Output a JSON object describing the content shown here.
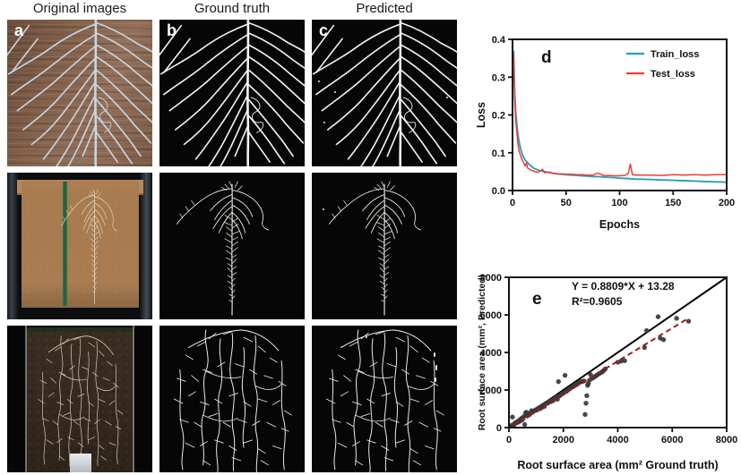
{
  "figure": {
    "column_headers": [
      "Original images",
      "Ground truth",
      "Predicted"
    ],
    "panel_labels": {
      "a": "a",
      "b": "b",
      "c": "c"
    }
  },
  "chart_data": [
    {
      "id": "training-loss-curve",
      "type": "line",
      "panel_label": "d",
      "xlabel": "Epochs",
      "ylabel": "Loss",
      "xlim": [
        0,
        200
      ],
      "ylim": [
        0,
        0.4
      ],
      "xticks": [
        [
          0,
          "0"
        ],
        [
          50,
          "50"
        ],
        [
          100,
          "100"
        ],
        [
          150,
          "150"
        ],
        [
          200,
          "200"
        ]
      ],
      "yticks": [
        [
          0,
          "0.0"
        ],
        [
          0.1,
          "0.1"
        ],
        [
          0.2,
          "0.2"
        ],
        [
          0.3,
          "0.3"
        ],
        [
          0.4,
          "0.4"
        ]
      ],
      "grid": false,
      "legend_position": "top-right",
      "series": [
        {
          "name": "Train_loss",
          "color": "#2a9fb5",
          "x": [
            1,
            2,
            3,
            4,
            5,
            6,
            8,
            10,
            12,
            13,
            14,
            16,
            18,
            20,
            24,
            28,
            30,
            34,
            38,
            42,
            46,
            50,
            55,
            60,
            65,
            70,
            75,
            80,
            85,
            90,
            95,
            100,
            105,
            108,
            110,
            112,
            115,
            120,
            130,
            140,
            150,
            160,
            170,
            180,
            190,
            200
          ],
          "y": [
            0.37,
            0.26,
            0.205,
            0.175,
            0.15,
            0.13,
            0.105,
            0.09,
            0.08,
            0.077,
            0.074,
            0.068,
            0.063,
            0.059,
            0.054,
            0.051,
            0.05,
            0.048,
            0.046,
            0.044,
            0.043,
            0.042,
            0.041,
            0.04,
            0.039,
            0.038,
            0.037,
            0.037,
            0.036,
            0.035,
            0.034,
            0.033,
            0.032,
            0.032,
            0.031,
            0.031,
            0.03,
            0.03,
            0.029,
            0.028,
            0.027,
            0.026,
            0.025,
            0.024,
            0.023,
            0.022
          ]
        },
        {
          "name": "Test_loss",
          "color": "#f23b35",
          "x": [
            1,
            2,
            3,
            4,
            5,
            6,
            8,
            10,
            12,
            13,
            14,
            16,
            18,
            20,
            24,
            28,
            30,
            34,
            38,
            42,
            46,
            50,
            55,
            60,
            65,
            70,
            75,
            80,
            85,
            90,
            95,
            100,
            105,
            108,
            110,
            112,
            115,
            120,
            130,
            140,
            150,
            160,
            170,
            180,
            190,
            200
          ],
          "y": [
            0.36,
            0.24,
            0.185,
            0.155,
            0.125,
            0.105,
            0.088,
            0.075,
            0.065,
            0.073,
            0.06,
            0.056,
            0.053,
            0.051,
            0.048,
            0.056,
            0.047,
            0.049,
            0.045,
            0.044,
            0.044,
            0.043,
            0.043,
            0.042,
            0.042,
            0.041,
            0.041,
            0.046,
            0.04,
            0.04,
            0.039,
            0.039,
            0.04,
            0.045,
            0.07,
            0.042,
            0.041,
            0.041,
            0.041,
            0.04,
            0.042,
            0.041,
            0.042,
            0.041,
            0.042,
            0.042
          ]
        }
      ]
    },
    {
      "id": "predicted-vs-groundtruth",
      "type": "scatter",
      "panel_label": "e",
      "xlabel": "Root surface area (mm² Ground truth)",
      "ylabel": "Root surface area (mm², Predicted)",
      "annotation": {
        "equation": "Y = 0.8809*X + 13.28",
        "r_squared": "R²=0.9605"
      },
      "xlim": [
        0,
        8000
      ],
      "ylim": [
        0,
        8000
      ],
      "xticks": [
        [
          0,
          "0"
        ],
        [
          2000,
          "2000"
        ],
        [
          4000,
          "4000"
        ],
        [
          6000,
          "6000"
        ],
        [
          8000,
          "8000"
        ]
      ],
      "yticks": [
        [
          0,
          "0"
        ],
        [
          2000,
          "2000"
        ],
        [
          4000,
          "4000"
        ],
        [
          6000,
          "6000"
        ],
        [
          8000,
          "8000"
        ]
      ],
      "grid": false,
      "identity_line": {
        "color": "#000000",
        "width": 2
      },
      "regression": {
        "slope": 0.8809,
        "intercept": 13.28,
        "x_start": 150,
        "x_end": 6600,
        "color": "#9e1b1b",
        "dashed": true
      },
      "point_color": "#383838",
      "points": [
        [
          60,
          90
        ],
        [
          110,
          130
        ],
        [
          130,
          560
        ],
        [
          170,
          90
        ],
        [
          200,
          210
        ],
        [
          240,
          260
        ],
        [
          280,
          250
        ],
        [
          320,
          330
        ],
        [
          360,
          300
        ],
        [
          400,
          420
        ],
        [
          430,
          370
        ],
        [
          470,
          500
        ],
        [
          500,
          430
        ],
        [
          540,
          580
        ],
        [
          580,
          160
        ],
        [
          610,
          770
        ],
        [
          640,
          820
        ],
        [
          670,
          620
        ],
        [
          700,
          660
        ],
        [
          730,
          740
        ],
        [
          760,
          700
        ],
        [
          800,
          780
        ],
        [
          830,
          900
        ],
        [
          860,
          810
        ],
        [
          900,
          860
        ],
        [
          940,
          900
        ],
        [
          980,
          950
        ],
        [
          1020,
          930
        ],
        [
          1060,
          1010
        ],
        [
          1100,
          1050
        ],
        [
          1140,
          1000
        ],
        [
          1180,
          1120
        ],
        [
          1220,
          1080
        ],
        [
          1260,
          1200
        ],
        [
          1300,
          1130
        ],
        [
          1340,
          1270
        ],
        [
          1380,
          1300
        ],
        [
          1420,
          1290
        ],
        [
          1460,
          1370
        ],
        [
          1500,
          1400
        ],
        [
          1540,
          1380
        ],
        [
          1580,
          1460
        ],
        [
          1620,
          1440
        ],
        [
          1660,
          1520
        ],
        [
          1700,
          1570
        ],
        [
          1740,
          1640
        ],
        [
          1780,
          1510
        ],
        [
          1820,
          2450
        ],
        [
          1860,
          1690
        ],
        [
          1900,
          1740
        ],
        [
          1950,
          1800
        ],
        [
          2000,
          1830
        ],
        [
          2060,
          2780
        ],
        [
          2100,
          1920
        ],
        [
          2160,
          1990
        ],
        [
          2220,
          2060
        ],
        [
          2280,
          2120
        ],
        [
          2340,
          2170
        ],
        [
          2400,
          2230
        ],
        [
          2460,
          2300
        ],
        [
          2520,
          2340
        ],
        [
          2580,
          2400
        ],
        [
          2640,
          2430
        ],
        [
          2700,
          2460
        ],
        [
          2760,
          2480
        ],
        [
          2800,
          700
        ],
        [
          2830,
          1300
        ],
        [
          2860,
          1700
        ],
        [
          2890,
          2250
        ],
        [
          2920,
          2350
        ],
        [
          2960,
          2520
        ],
        [
          3000,
          2820
        ],
        [
          3060,
          2620
        ],
        [
          3120,
          2680
        ],
        [
          3180,
          2740
        ],
        [
          3240,
          2800
        ],
        [
          3300,
          2860
        ],
        [
          3360,
          2910
        ],
        [
          3420,
          2960
        ],
        [
          3480,
          3040
        ],
        [
          3540,
          3120
        ],
        [
          4000,
          3480
        ],
        [
          4120,
          3540
        ],
        [
          4250,
          3560
        ],
        [
          4980,
          4260
        ],
        [
          5060,
          5160
        ],
        [
          5480,
          5900
        ],
        [
          5560,
          4760
        ],
        [
          5680,
          4680
        ],
        [
          6160,
          5820
        ],
        [
          6600,
          5660
        ]
      ]
    }
  ]
}
